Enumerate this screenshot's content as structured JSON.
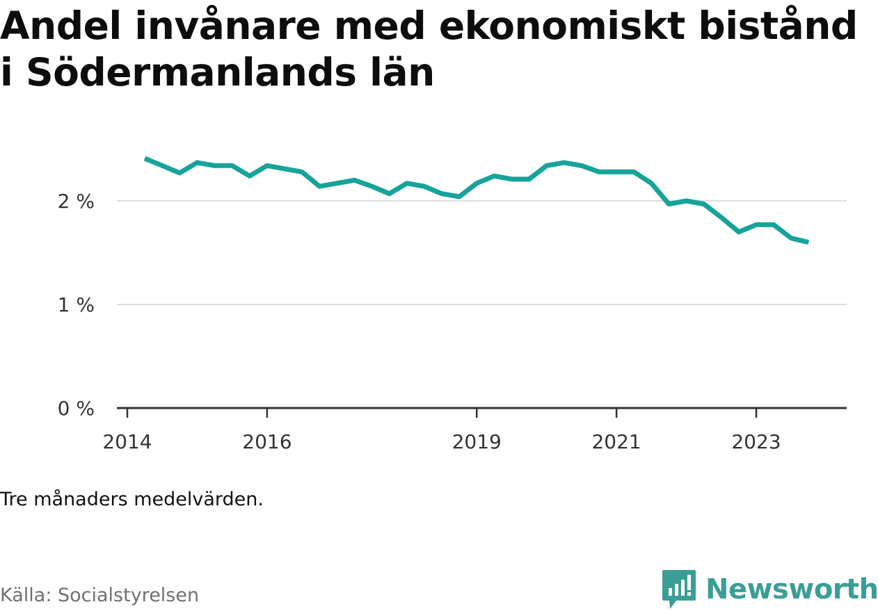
{
  "title": "Andel invånare med ekonomiskt bistånd i Södermanlands län",
  "note": "Tre månaders medelvärden.",
  "source": "Källa: Socialstyrelsen",
  "brand": {
    "name": "Newsworthy",
    "icon": "newsworthy-logo-icon",
    "color": "#3a9e96"
  },
  "colors": {
    "line": "#16a39a",
    "grid": "#dddddd",
    "axis": "#333333"
  },
  "chart_data": {
    "type": "line",
    "title": "Andel invånare med ekonomiskt bistånd i Södermanlands län",
    "xlabel": "",
    "ylabel": "",
    "ylim": [
      0,
      2.5
    ],
    "yticks": [
      {
        "value": 0,
        "label": "0 %"
      },
      {
        "value": 1,
        "label": "1 %"
      },
      {
        "value": 2,
        "label": "2 %"
      }
    ],
    "xlim": [
      "2014-01",
      "2024-05"
    ],
    "xticks": [
      {
        "value": "2014-01",
        "label": "2014"
      },
      {
        "value": "2016-01",
        "label": "2016"
      },
      {
        "value": "2019-01",
        "label": "2019"
      },
      {
        "value": "2021-01",
        "label": "2021"
      },
      {
        "value": "2023-01",
        "label": "2023"
      }
    ],
    "grid": true,
    "legend": "none",
    "series": [
      {
        "color": "#16a39a",
        "points": [
          {
            "x": "2014-04",
            "y": 2.41
          },
          {
            "x": "2014-07",
            "y": 2.34
          },
          {
            "x": "2014-10",
            "y": 2.27
          },
          {
            "x": "2015-01",
            "y": 2.37
          },
          {
            "x": "2015-04",
            "y": 2.34
          },
          {
            "x": "2015-07",
            "y": 2.34
          },
          {
            "x": "2015-10",
            "y": 2.24
          },
          {
            "x": "2016-01",
            "y": 2.34
          },
          {
            "x": "2016-04",
            "y": 2.31
          },
          {
            "x": "2016-07",
            "y": 2.28
          },
          {
            "x": "2016-10",
            "y": 2.14
          },
          {
            "x": "2017-01",
            "y": 2.17
          },
          {
            "x": "2017-04",
            "y": 2.2
          },
          {
            "x": "2017-07",
            "y": 2.14
          },
          {
            "x": "2017-10",
            "y": 2.07
          },
          {
            "x": "2018-01",
            "y": 2.17
          },
          {
            "x": "2018-04",
            "y": 2.14
          },
          {
            "x": "2018-07",
            "y": 2.07
          },
          {
            "x": "2018-10",
            "y": 2.04
          },
          {
            "x": "2019-01",
            "y": 2.17
          },
          {
            "x": "2019-04",
            "y": 2.24
          },
          {
            "x": "2019-07",
            "y": 2.21
          },
          {
            "x": "2019-10",
            "y": 2.21
          },
          {
            "x": "2020-01",
            "y": 2.34
          },
          {
            "x": "2020-04",
            "y": 2.37
          },
          {
            "x": "2020-07",
            "y": 2.34
          },
          {
            "x": "2020-10",
            "y": 2.28
          },
          {
            "x": "2021-01",
            "y": 2.28
          },
          {
            "x": "2021-04",
            "y": 2.28
          },
          {
            "x": "2021-07",
            "y": 2.17
          },
          {
            "x": "2021-10",
            "y": 1.97
          },
          {
            "x": "2022-01",
            "y": 2.0
          },
          {
            "x": "2022-04",
            "y": 1.97
          },
          {
            "x": "2022-07",
            "y": 1.84
          },
          {
            "x": "2022-10",
            "y": 1.7
          },
          {
            "x": "2023-01",
            "y": 1.77
          },
          {
            "x": "2023-04",
            "y": 1.77
          },
          {
            "x": "2023-07",
            "y": 1.64
          },
          {
            "x": "2023-10",
            "y": 1.6
          }
        ]
      }
    ]
  }
}
